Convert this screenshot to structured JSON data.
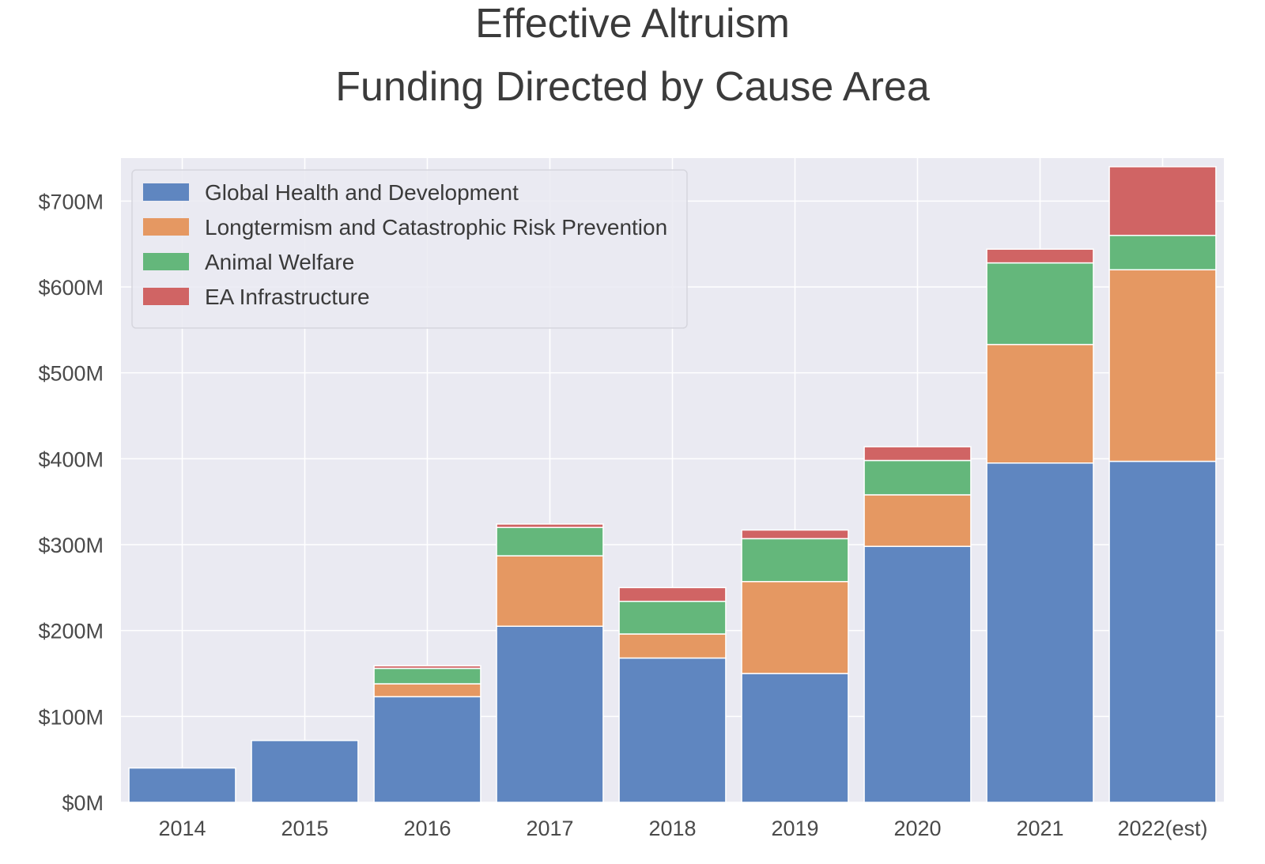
{
  "chart_data": {
    "type": "bar",
    "stacked": true,
    "title": [
      "Effective Altruism",
      "Funding Directed by Cause Area"
    ],
    "xlabel": "",
    "ylabel": "",
    "categories": [
      "2014",
      "2015",
      "2016",
      "2017",
      "2018",
      "2019",
      "2020",
      "2021",
      "2022(est)"
    ],
    "ylim": [
      0,
      750
    ],
    "yticks": [
      0,
      100,
      200,
      300,
      400,
      500,
      600,
      700
    ],
    "ytick_labels": [
      "$0M",
      "$100M",
      "$200M",
      "$300M",
      "$400M",
      "$500M",
      "$600M",
      "$700M"
    ],
    "grid": true,
    "legend_position": "top-left",
    "series": [
      {
        "name": "Global Health and Development",
        "color": "#5f86c0",
        "values": [
          40,
          72,
          123,
          205,
          168,
          150,
          298,
          395,
          397
        ]
      },
      {
        "name": "Longtermism and Catastrophic Risk Prevention",
        "color": "#e59862",
        "values": [
          0,
          0,
          15,
          82,
          28,
          107,
          60,
          138,
          223
        ]
      },
      {
        "name": "Animal Welfare",
        "color": "#64b77b",
        "values": [
          0,
          0,
          18,
          33,
          38,
          50,
          40,
          95,
          40
        ]
      },
      {
        "name": "EA Infrastructure",
        "color": "#d06464",
        "values": [
          0,
          0,
          3,
          4,
          16,
          10,
          16,
          16,
          80
        ]
      }
    ]
  }
}
